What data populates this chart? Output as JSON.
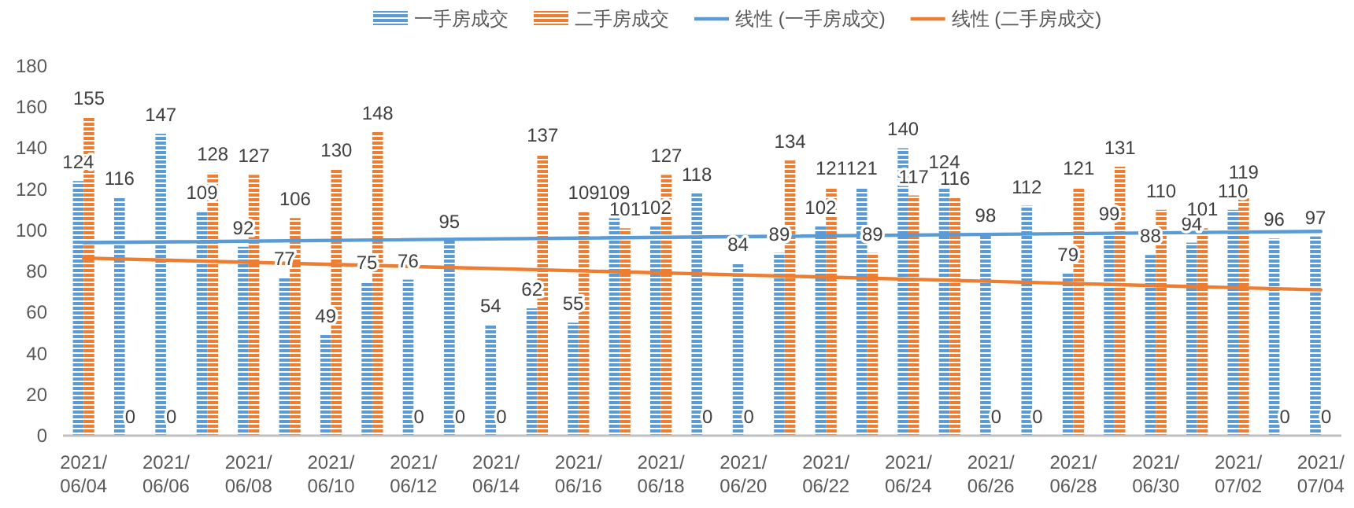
{
  "chart_data": {
    "type": "bar",
    "categories": [
      "2021/06/04",
      null,
      "2021/06/06",
      null,
      "2021/06/08",
      null,
      "2021/06/10",
      null,
      "2021/06/12",
      null,
      "2021/06/14",
      null,
      "2021/06/16",
      null,
      "2021/06/18",
      null,
      "2021/06/20",
      null,
      "2021/06/22",
      null,
      "2021/06/24",
      null,
      "2021/06/26",
      null,
      "2021/06/28",
      null,
      "2021/06/30",
      null,
      "2021/07/02",
      null,
      "2021/07/04"
    ],
    "series": [
      {
        "name": "一手房成交",
        "color": "#5b9bd5",
        "values": [
          124,
          116,
          147,
          109,
          92,
          77,
          49,
          75,
          76,
          95,
          54,
          62,
          55,
          109,
          102,
          118,
          84,
          89,
          102,
          121,
          140,
          124,
          98,
          112,
          79,
          99,
          88,
          94,
          110,
          96,
          97
        ],
        "value_labels": [
          "124",
          "116",
          "147",
          "109",
          "92",
          "77",
          "49",
          "75",
          "76",
          "95",
          "54",
          "62",
          "55",
          "109",
          "102",
          "118",
          "84",
          "89",
          "102",
          "121",
          "140",
          "124",
          "98",
          "112",
          "79",
          "99",
          "88",
          "94",
          "110",
          "96",
          "97"
        ]
      },
      {
        "name": "二手房成交",
        "color": "#ed7d31",
        "values": [
          155,
          0,
          0,
          128,
          127,
          106,
          130,
          148,
          0,
          0,
          0,
          137,
          109,
          101,
          127,
          0,
          0,
          134,
          121,
          89,
          117,
          116,
          0,
          0,
          121,
          131,
          110,
          101,
          119,
          0,
          0
        ],
        "value_labels": [
          "155",
          "0",
          "0",
          "128",
          "127",
          "106",
          "130",
          "148",
          "0",
          "0",
          "0",
          "137",
          "109",
          "101",
          "127",
          "0",
          "0",
          "134",
          "121",
          "89",
          "117",
          "116",
          "0",
          "0",
          "121",
          "131",
          "110",
          "101",
          "119",
          "0",
          "0"
        ]
      },
      {
        "name": "线性 (一手房成交)",
        "type": "line",
        "color": "#5b9bd5",
        "x": [
          "2021/06/04",
          "2021/07/04"
        ],
        "values": [
          94,
          99.5
        ]
      },
      {
        "name": "线性 (二手房成交)",
        "type": "line",
        "color": "#ed7d31",
        "x": [
          "2021/06/04",
          "2021/07/04"
        ],
        "values": [
          86.5,
          71
        ]
      }
    ],
    "ylim": [
      0,
      180
    ],
    "yticks": [
      0,
      20,
      40,
      60,
      80,
      100,
      120,
      140,
      160,
      180
    ],
    "legend": "top",
    "grid": false
  }
}
